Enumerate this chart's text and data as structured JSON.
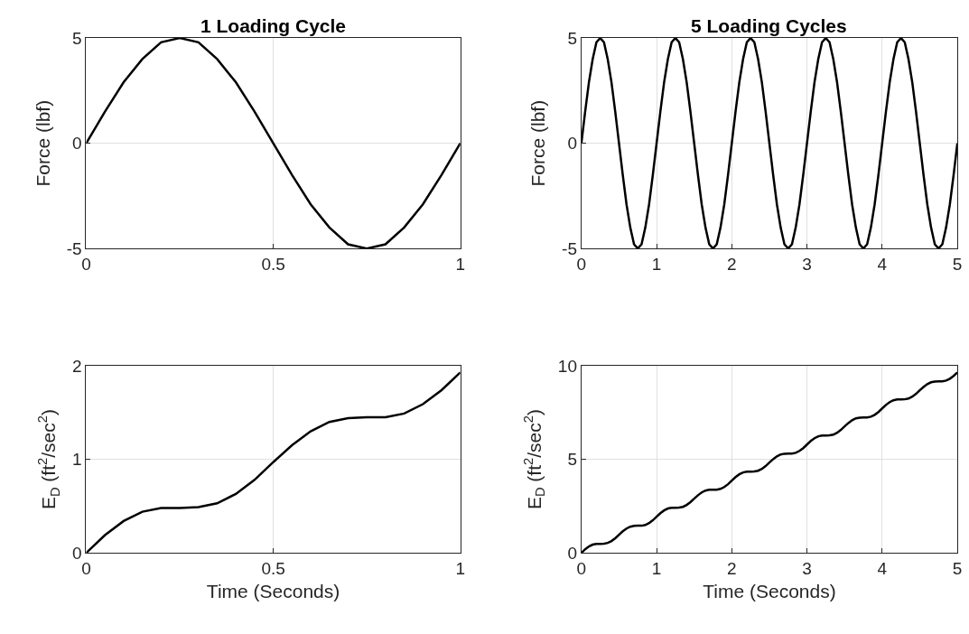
{
  "chart_data": [
    {
      "type": "line",
      "title": "1 Loading Cycle",
      "ylabel": "Force (lbf)",
      "color": "#000000",
      "grid": true,
      "xlim": [
        0,
        1
      ],
      "ylim": [
        -5,
        5
      ],
      "xticks": [
        0,
        0.5,
        1
      ],
      "yticks": [
        -5,
        0,
        5
      ],
      "x": [
        0,
        0.05,
        0.1,
        0.15,
        0.2,
        0.25,
        0.3,
        0.35,
        0.4,
        0.45,
        0.5,
        0.55,
        0.6,
        0.65,
        0.7,
        0.75,
        0.8,
        0.85,
        0.9,
        0.95,
        1
      ],
      "values": [
        0,
        1.5,
        2.9,
        4.0,
        4.8,
        5,
        4.8,
        4.0,
        2.9,
        1.5,
        0,
        -1.5,
        -2.9,
        -4.0,
        -4.8,
        -5,
        -4.8,
        -4.0,
        -2.9,
        -1.5,
        0
      ]
    },
    {
      "type": "line",
      "title": "5 Loading Cycles",
      "ylabel": "Force (lbf)",
      "color": "#000000",
      "grid": true,
      "xlim": [
        0,
        5
      ],
      "ylim": [
        -5,
        5
      ],
      "xticks": [
        0,
        1,
        2,
        3,
        4,
        5
      ],
      "yticks": [
        -5,
        0,
        5
      ],
      "x": [
        0,
        0.05,
        0.1,
        0.15,
        0.2,
        0.25,
        0.3,
        0.35,
        0.4,
        0.45,
        0.5,
        0.55,
        0.6,
        0.65,
        0.7,
        0.75,
        0.8,
        0.85,
        0.9,
        0.95,
        1,
        1.05,
        1.1,
        1.15,
        1.2,
        1.25,
        1.3,
        1.35,
        1.4,
        1.45,
        1.5,
        1.55,
        1.6,
        1.65,
        1.7,
        1.75,
        1.8,
        1.85,
        1.9,
        1.95,
        2,
        2.05,
        2.1,
        2.15,
        2.2,
        2.25,
        2.3,
        2.35,
        2.4,
        2.45,
        2.5,
        2.55,
        2.6,
        2.65,
        2.7,
        2.75,
        2.8,
        2.85,
        2.9,
        2.95,
        3,
        3.05,
        3.1,
        3.15,
        3.2,
        3.25,
        3.3,
        3.35,
        3.4,
        3.45,
        3.5,
        3.55,
        3.6,
        3.65,
        3.7,
        3.75,
        3.8,
        3.85,
        3.9,
        3.95,
        4,
        4.05,
        4.1,
        4.15,
        4.2,
        4.25,
        4.3,
        4.35,
        4.4,
        4.45,
        4.5,
        4.55,
        4.6,
        4.65,
        4.7,
        4.75,
        4.8,
        4.85,
        4.9,
        4.95,
        5
      ],
      "values": [
        0,
        1.5,
        2.9,
        4.0,
        4.8,
        5,
        4.8,
        4.0,
        2.9,
        1.5,
        0,
        -1.5,
        -2.9,
        -4.0,
        -4.8,
        -5,
        -4.8,
        -4.0,
        -2.9,
        -1.5,
        0,
        1.5,
        2.9,
        4.0,
        4.8,
        5,
        4.8,
        4.0,
        2.9,
        1.5,
        0,
        -1.5,
        -2.9,
        -4.0,
        -4.8,
        -5,
        -4.8,
        -4.0,
        -2.9,
        -1.5,
        0,
        1.5,
        2.9,
        4.0,
        4.8,
        5,
        4.8,
        4.0,
        2.9,
        1.5,
        0,
        -1.5,
        -2.9,
        -4.0,
        -4.8,
        -5,
        -4.8,
        -4.0,
        -2.9,
        -1.5,
        0,
        1.5,
        2.9,
        4.0,
        4.8,
        5,
        4.8,
        4.0,
        2.9,
        1.5,
        0,
        -1.5,
        -2.9,
        -4.0,
        -4.8,
        -5,
        -4.8,
        -4.0,
        -2.9,
        -1.5,
        0,
        1.5,
        2.9,
        4.0,
        4.8,
        5,
        4.8,
        4.0,
        2.9,
        1.5,
        0,
        -1.5,
        -2.9,
        -4.0,
        -4.8,
        -5,
        -4.8,
        -4.0,
        -2.9,
        -1.5,
        0
      ]
    },
    {
      "type": "line",
      "xlabel": "Time (Seconds)",
      "ylabel": "E$_{D}$ (ft$^{2}$/sec$^{2}$)",
      "color": "#000000",
      "grid": true,
      "xlim": [
        0,
        1
      ],
      "ylim": [
        0,
        2
      ],
      "xticks": [
        0,
        0.5,
        1
      ],
      "yticks": [
        0,
        1,
        2
      ],
      "x": [
        0,
        0.05,
        0.1,
        0.15,
        0.2,
        0.25,
        0.3,
        0.35,
        0.4,
        0.45,
        0.5,
        0.55,
        0.6,
        0.65,
        0.7,
        0.75,
        0.8,
        0.85,
        0.9,
        0.95,
        1
      ],
      "values": [
        0,
        0.19,
        0.34,
        0.44,
        0.48,
        0.48,
        0.49,
        0.53,
        0.63,
        0.78,
        0.97,
        1.15,
        1.3,
        1.4,
        1.44,
        1.45,
        1.45,
        1.49,
        1.59,
        1.74,
        1.93
      ]
    },
    {
      "type": "line",
      "xlabel": "Time (Seconds)",
      "ylabel": "E$_{D}$ (ft$^{2}$/sec$^{2}$)",
      "color": "#000000",
      "grid": true,
      "xlim": [
        0,
        5
      ],
      "ylim": [
        0,
        10
      ],
      "xticks": [
        0,
        1,
        2,
        3,
        4,
        5
      ],
      "yticks": [
        0,
        5,
        10
      ],
      "x": [
        0,
        0.05,
        0.1,
        0.15,
        0.2,
        0.25,
        0.3,
        0.35,
        0.4,
        0.45,
        0.5,
        0.55,
        0.6,
        0.65,
        0.7,
        0.75,
        0.8,
        0.85,
        0.9,
        0.95,
        1,
        1.05,
        1.1,
        1.15,
        1.2,
        1.25,
        1.3,
        1.35,
        1.4,
        1.45,
        1.5,
        1.55,
        1.6,
        1.65,
        1.7,
        1.75,
        1.8,
        1.85,
        1.9,
        1.95,
        2,
        2.05,
        2.1,
        2.15,
        2.2,
        2.25,
        2.3,
        2.35,
        2.4,
        2.45,
        2.5,
        2.55,
        2.6,
        2.65,
        2.7,
        2.75,
        2.8,
        2.85,
        2.9,
        2.95,
        3,
        3.05,
        3.1,
        3.15,
        3.2,
        3.25,
        3.3,
        3.35,
        3.4,
        3.45,
        3.5,
        3.55,
        3.6,
        3.65,
        3.7,
        3.75,
        3.8,
        3.85,
        3.9,
        3.95,
        4,
        4.05,
        4.1,
        4.15,
        4.2,
        4.25,
        4.3,
        4.35,
        4.4,
        4.45,
        4.5,
        4.55,
        4.6,
        4.65,
        4.7,
        4.75,
        4.8,
        4.85,
        4.9,
        4.95,
        5
      ],
      "values": [
        0,
        0.19,
        0.34,
        0.44,
        0.48,
        0.48,
        0.49,
        0.53,
        0.63,
        0.78,
        0.97,
        1.15,
        1.3,
        1.4,
        1.44,
        1.45,
        1.45,
        1.49,
        1.59,
        1.74,
        1.93,
        2.12,
        2.27,
        2.37,
        2.41,
        2.41,
        2.42,
        2.46,
        2.56,
        2.71,
        2.9,
        3.08,
        3.23,
        3.33,
        3.37,
        3.38,
        3.38,
        3.42,
        3.52,
        3.67,
        3.86,
        4.05,
        4.2,
        4.3,
        4.34,
        4.34,
        4.35,
        4.39,
        4.49,
        4.64,
        4.83,
        5.01,
        5.16,
        5.26,
        5.3,
        5.31,
        5.31,
        5.35,
        5.45,
        5.6,
        5.79,
        5.98,
        6.13,
        6.23,
        6.27,
        6.27,
        6.28,
        6.32,
        6.42,
        6.57,
        6.76,
        6.94,
        7.09,
        7.19,
        7.23,
        7.24,
        7.24,
        7.28,
        7.38,
        7.53,
        7.72,
        7.91,
        8.06,
        8.16,
        8.2,
        8.2,
        8.21,
        8.25,
        8.35,
        8.5,
        8.69,
        8.87,
        9.02,
        9.12,
        9.16,
        9.17,
        9.17,
        9.21,
        9.31,
        9.46,
        9.65
      ]
    }
  ]
}
